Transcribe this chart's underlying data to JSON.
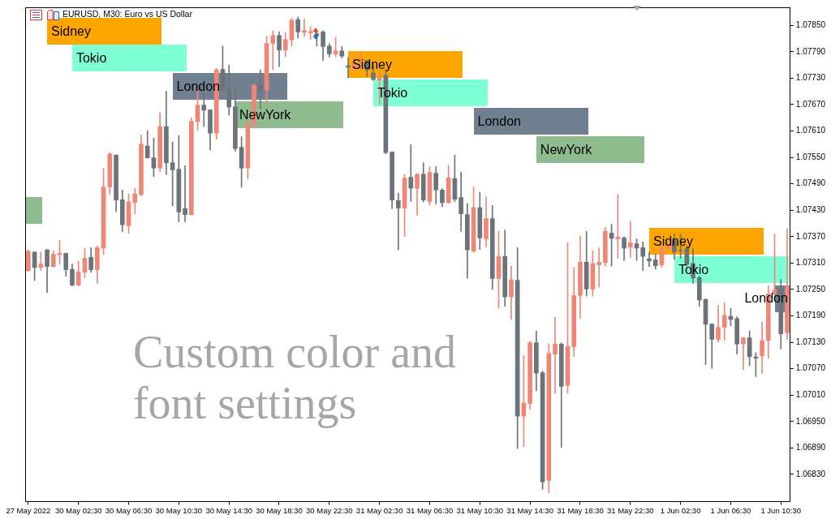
{
  "chart_data": {
    "type": "candlestick",
    "title": "EURUSD, M30: Euro vs US Dollar",
    "categories": [
      "27 May 2022",
      null,
      null,
      null,
      null,
      null,
      null,
      null,
      "30 May 02:30",
      null,
      null,
      null,
      null,
      null,
      null,
      null,
      "30 May 06:30",
      null,
      null,
      null,
      null,
      null,
      null,
      null,
      "30 May 10:30",
      null,
      null,
      null,
      null,
      null,
      null,
      null,
      "30 May 14:30",
      null,
      null,
      null,
      null,
      null,
      null,
      null,
      "30 May 18:30",
      null,
      null,
      null,
      null,
      null,
      null,
      null,
      "30 May 22:30",
      null,
      null,
      null,
      null,
      null,
      null,
      null,
      "31 May 02:30",
      null,
      null,
      null,
      null,
      null,
      null,
      null,
      "31 May 06:30",
      null,
      null,
      null,
      null,
      null,
      null,
      null,
      "31 May 10:30",
      null,
      null,
      null,
      null,
      null,
      null,
      null,
      "31 May 14:30",
      null,
      null,
      null,
      null,
      null,
      null,
      null,
      "31 May 18:30",
      null,
      null,
      null,
      null,
      null,
      null,
      null,
      "31 May 22:30",
      null,
      null,
      null,
      null,
      null,
      null,
      null,
      "1 Jun 02:30",
      null,
      null,
      null,
      null,
      null,
      null,
      null,
      "1 Jun 06:30",
      null,
      null,
      null,
      null,
      null,
      null,
      null,
      "1 Jun 10:30",
      null
    ],
    "ohlc": [
      [
        1.07293,
        1.0734,
        1.07291,
        1.07337
      ],
      [
        1.07335,
        1.07336,
        1.0727,
        1.073
      ],
      [
        1.073,
        1.07335,
        1.07293,
        1.07308
      ],
      [
        1.0734,
        1.07341,
        1.07243,
        1.07302
      ],
      [
        1.07302,
        1.07338,
        1.07301,
        1.0733
      ],
      [
        1.07329,
        1.07362,
        1.07307,
        1.07332
      ],
      [
        1.07332,
        1.07333,
        1.0728,
        1.07295
      ],
      [
        1.07296,
        1.07308,
        1.07258,
        1.0726
      ],
      [
        1.0726,
        1.07314,
        1.07258,
        1.0729
      ],
      [
        1.07289,
        1.07344,
        1.07276,
        1.07321
      ],
      [
        1.07323,
        1.07345,
        1.07289,
        1.07295
      ],
      [
        1.07295,
        1.07349,
        1.07264,
        1.07345
      ],
      [
        1.07344,
        1.07525,
        1.07329,
        1.07483
      ],
      [
        1.07483,
        1.07561,
        1.07466,
        1.07558
      ],
      [
        1.07555,
        1.07556,
        1.07427,
        1.07453
      ],
      [
        1.07454,
        1.07476,
        1.07381,
        1.07397
      ],
      [
        1.07395,
        1.07467,
        1.07377,
        1.07449
      ],
      [
        1.07447,
        1.0748,
        1.07422,
        1.07467
      ],
      [
        1.07466,
        1.07601,
        1.07462,
        1.0758
      ],
      [
        1.07576,
        1.07611,
        1.07548,
        1.07549
      ],
      [
        1.07549,
        1.07594,
        1.07506,
        1.07526
      ],
      [
        1.07526,
        1.07652,
        1.07518,
        1.0762
      ],
      [
        1.0762,
        1.077,
        1.07511,
        1.07538
      ],
      [
        1.07538,
        1.07585,
        1.0744,
        1.07522
      ],
      [
        1.07523,
        1.076,
        1.07404,
        1.07426
      ],
      [
        1.07434,
        1.07531,
        1.07404,
        1.0742
      ],
      [
        1.0742,
        1.0764,
        1.07419,
        1.07632
      ],
      [
        1.07631,
        1.077,
        1.07611,
        1.07669
      ],
      [
        1.07669,
        1.07696,
        1.0762,
        1.07657
      ],
      [
        1.07658,
        1.07659,
        1.07567,
        1.07605
      ],
      [
        1.07605,
        1.07752,
        1.07591,
        1.07749
      ],
      [
        1.0775,
        1.07803,
        1.07701,
        1.07703
      ],
      [
        1.07705,
        1.0776,
        1.07646,
        1.07664
      ],
      [
        1.07665,
        1.07712,
        1.07564,
        1.0757
      ],
      [
        1.07573,
        1.07597,
        1.07482,
        1.07526
      ],
      [
        1.07526,
        1.07631,
        1.07501,
        1.07629
      ],
      [
        1.07626,
        1.07717,
        1.07616,
        1.07714
      ],
      [
        1.07714,
        1.07749,
        1.07661,
        1.07701
      ],
      [
        1.07703,
        1.07826,
        1.07671,
        1.07809
      ],
      [
        1.07809,
        1.07838,
        1.07749,
        1.07827
      ],
      [
        1.07827,
        1.07835,
        1.07756,
        1.07794
      ],
      [
        1.07794,
        1.07834,
        1.07779,
        1.07818
      ],
      [
        1.07817,
        1.07866,
        1.07803,
        1.07862
      ],
      [
        1.07863,
        1.07869,
        1.07821,
        1.07835
      ],
      [
        1.07834,
        1.07864,
        1.07825,
        1.07838
      ],
      [
        1.07833,
        1.07847,
        1.07818,
        1.07836
      ],
      [
        1.07831,
        1.07836,
        1.07803,
        1.07827
      ],
      [
        1.07835,
        1.07838,
        1.0777,
        1.07802
      ],
      [
        1.07803,
        1.07809,
        1.07778,
        1.07785
      ],
      [
        1.07785,
        1.07823,
        1.07779,
        1.07792
      ],
      [
        1.07792,
        1.07802,
        1.07776,
        1.0778
      ],
      [
        1.07758,
        1.07777,
        1.07731,
        1.07755
      ],
      [
        1.07752,
        1.07785,
        1.07749,
        1.07764
      ],
      [
        1.07758,
        1.07791,
        1.07749,
        1.07762
      ],
      [
        1.0777,
        1.07771,
        1.07734,
        1.07749
      ],
      [
        1.07742,
        1.07761,
        1.07725,
        1.07727
      ],
      [
        1.07726,
        1.07743,
        1.0767,
        1.07731
      ],
      [
        1.07736,
        1.07749,
        1.07558,
        1.07561
      ],
      [
        1.07562,
        1.07563,
        1.07434,
        1.07453
      ],
      [
        1.07452,
        1.07469,
        1.0734,
        1.07435
      ],
      [
        1.07435,
        1.07512,
        1.0737,
        1.07503
      ],
      [
        1.07505,
        1.07579,
        1.0745,
        1.0748
      ],
      [
        1.0748,
        1.07513,
        1.07418,
        1.07512
      ],
      [
        1.07512,
        1.07538,
        1.07449,
        1.07453
      ],
      [
        1.0745,
        1.07529,
        1.07441,
        1.07516
      ],
      [
        1.07514,
        1.07529,
        1.07444,
        1.07476
      ],
      [
        1.07476,
        1.07479,
        1.07438,
        1.07447
      ],
      [
        1.07447,
        1.07532,
        1.07446,
        1.07503
      ],
      [
        1.07502,
        1.07555,
        1.07449,
        1.07455
      ],
      [
        1.07459,
        1.07517,
        1.07382,
        1.07422
      ],
      [
        1.0742,
        1.07445,
        1.07276,
        1.0734
      ],
      [
        1.07337,
        1.07483,
        1.07335,
        1.07436
      ],
      [
        1.07436,
        1.07471,
        1.07341,
        1.07367
      ],
      [
        1.07365,
        1.0746,
        1.07347,
        1.07411
      ],
      [
        1.07411,
        1.07441,
        1.0725,
        1.07275
      ],
      [
        1.07275,
        1.07383,
        1.07207,
        1.07325
      ],
      [
        1.07325,
        1.07385,
        1.07212,
        1.07233
      ],
      [
        1.07233,
        1.07303,
        1.07182,
        1.07272
      ],
      [
        1.07271,
        1.07345,
        1.06889,
        1.06962
      ],
      [
        1.06962,
        1.071,
        1.06893,
        1.06992
      ],
      [
        1.06991,
        1.07132,
        1.06978,
        1.07129
      ],
      [
        1.07129,
        1.07156,
        1.0702,
        1.0706
      ],
      [
        1.07061,
        1.07065,
        1.06796,
        1.06813
      ],
      [
        1.06816,
        1.07127,
        1.06788,
        1.07105
      ],
      [
        1.07103,
        1.07187,
        1.07014,
        1.07126
      ],
      [
        1.07126,
        1.07129,
        1.06891,
        1.0703
      ],
      [
        1.07032,
        1.07356,
        1.07014,
        1.07121
      ],
      [
        1.0712,
        1.073,
        1.07098,
        1.07236
      ],
      [
        1.07236,
        1.07371,
        1.07185,
        1.07312
      ],
      [
        1.07312,
        1.07382,
        1.07235,
        1.07251
      ],
      [
        1.07251,
        1.07338,
        1.07235,
        1.07309
      ],
      [
        1.07306,
        1.07344,
        1.07255,
        1.07312
      ],
      [
        1.07311,
        1.07391,
        1.07303,
        1.07382
      ],
      [
        1.07378,
        1.07398,
        1.07303,
        1.07366
      ],
      [
        1.07365,
        1.07466,
        1.07321,
        1.07369
      ],
      [
        1.07367,
        1.0737,
        1.07316,
        1.07344
      ],
      [
        1.07346,
        1.07405,
        1.07323,
        1.07356
      ],
      [
        1.07354,
        1.07365,
        1.07316,
        1.07344
      ],
      [
        1.07345,
        1.07358,
        1.07293,
        1.07325
      ],
      [
        1.0732,
        1.07335,
        1.07302,
        1.07315
      ],
      [
        1.07317,
        1.07331,
        1.07296,
        1.07304
      ],
      [
        1.07306,
        1.07352,
        1.073,
        1.07343
      ],
      [
        1.07342,
        1.07354,
        1.0734,
        1.07352
      ],
      [
        1.07361,
        1.07376,
        1.07318,
        1.07335
      ],
      [
        1.07337,
        1.07376,
        1.07321,
        1.07337
      ],
      [
        1.07343,
        1.07349,
        1.07303,
        1.07307
      ],
      [
        1.07309,
        1.07343,
        1.07264,
        1.07276
      ],
      [
        1.07277,
        1.0728,
        1.07212,
        1.07226
      ],
      [
        1.07227,
        1.07229,
        1.07079,
        1.07171
      ],
      [
        1.07171,
        1.07173,
        1.07071,
        1.07137
      ],
      [
        1.07137,
        1.07214,
        1.07131,
        1.07164
      ],
      [
        1.07164,
        1.0722,
        1.07134,
        1.07191
      ],
      [
        1.07189,
        1.07207,
        1.07167,
        1.07182
      ],
      [
        1.07184,
        1.07188,
        1.07103,
        1.07126
      ],
      [
        1.07126,
        1.07141,
        1.07067,
        1.0714
      ],
      [
        1.0714,
        1.07156,
        1.07077,
        1.07097
      ],
      [
        1.07097,
        1.07106,
        1.07052,
        1.07094
      ],
      [
        1.07099,
        1.07176,
        1.07059,
        1.07134
      ],
      [
        1.07134,
        1.07259,
        1.07094,
        1.0724
      ],
      [
        1.0724,
        1.07376,
        1.07234,
        1.07249
      ],
      [
        1.07251,
        1.07273,
        1.07115,
        1.07149
      ],
      [
        1.07152,
        1.07388,
        1.07137,
        1.07258
      ]
    ],
    "colors": [
      "#ef8676",
      "#6c737a",
      "#ef8676",
      "#6c737a",
      "#ef8676",
      "#ef8676",
      "#6c737a",
      "#6c737a",
      "#ef8676",
      "#ef8676",
      "#6c737a",
      "#ef8676",
      "#ef8676",
      "#ef8676",
      "#6c737a",
      "#6c737a",
      "#ef8676",
      "#ef8676",
      "#ef8676",
      "#6c737a",
      "#6c737a",
      "#ef8676",
      "#6c737a",
      "#6c737a",
      "#6c737a",
      "#6c737a",
      "#ef8676",
      "#ef8676",
      "#6c737a",
      "#6c737a",
      "#ef8676",
      "#6c737a",
      "#6c737a",
      "#6c737a",
      "#6c737a",
      "#ef8676",
      "#ef8676",
      "#6c737a",
      "#ef8676",
      "#ef8676",
      "#6c737a",
      "#ef8676",
      "#ef8676",
      "#6c737a",
      "#ef8676",
      "#ef8676",
      "#6c737a",
      "#6c737a",
      "#6c737a",
      "#ef8676",
      "#6c737a",
      "#6c737a",
      "#ef8676",
      "#ef8676",
      "#6c737a",
      "#6c737a",
      "#ef8676",
      "#6c737a",
      "#6c737a",
      "#6c737a",
      "#ef8676",
      "#6c737a",
      "#ef8676",
      "#6c737a",
      "#ef8676",
      "#6c737a",
      "#6c737a",
      "#ef8676",
      "#6c737a",
      "#6c737a",
      "#6c737a",
      "#ef8676",
      "#6c737a",
      "#ef8676",
      "#6c737a",
      "#ef8676",
      "#6c737a",
      "#ef8676",
      "#6c737a",
      "#ef8676",
      "#ef8676",
      "#6c737a",
      "#6c737a",
      "#ef8676",
      "#ef8676",
      "#6c737a",
      "#ef8676",
      "#ef8676",
      "#ef8676",
      "#6c737a",
      "#ef8676",
      "#ef8676",
      "#ef8676",
      "#6c737a",
      "#ef8676",
      "#6c737a",
      "#ef8676",
      "#6c737a",
      "#6c737a",
      "#6c737a",
      "#6c737a",
      "#ef8676",
      "#ef8676",
      "#6c737a",
      "#6c737a",
      "#6c737a",
      "#6c737a",
      "#6c737a",
      "#6c737a",
      "#6c737a",
      "#ef8676",
      "#ef8676",
      "#6c737a",
      "#6c737a",
      "#ef8676",
      "#6c737a",
      "#6c737a",
      "#ef8676",
      "#ef8676",
      "#ef8676",
      "#6c737a",
      "#ef8676"
    ],
    "ylim": [
      1.06768,
      1.07891
    ],
    "yticks": [
      {
        "value": 1.0683,
        "label": "1.06830"
      },
      {
        "value": 1.0689,
        "label": "1.06890"
      },
      {
        "value": 1.0695,
        "label": "1.06950"
      },
      {
        "value": 1.0701,
        "label": "1.07010"
      },
      {
        "value": 1.0707,
        "label": "1.07070"
      },
      {
        "value": 1.0713,
        "label": "1.07130"
      },
      {
        "value": 1.0719,
        "label": "1.07190"
      },
      {
        "value": 1.0725,
        "label": "1.07250"
      },
      {
        "value": 1.0731,
        "label": "1.07310"
      },
      {
        "value": 1.0737,
        "label": "1.07370"
      },
      {
        "value": 1.0743,
        "label": "1.07430"
      },
      {
        "value": 1.0749,
        "label": "1.07490"
      },
      {
        "value": 1.0755,
        "label": "1.07550"
      },
      {
        "value": 1.0761,
        "label": "1.07610"
      },
      {
        "value": 1.0767,
        "label": "1.07670"
      },
      {
        "value": 1.0773,
        "label": "1.07730"
      },
      {
        "value": 1.0779,
        "label": "1.07790"
      },
      {
        "value": 1.0785,
        "label": "1.07850"
      }
    ],
    "annotations": [
      "Sidney",
      "Tokio",
      "London",
      "NewYork",
      "Sidney",
      "Tokio",
      "London",
      "NewYork",
      "Sidney",
      "Tokio",
      "London",
      "Custom color and font settings"
    ]
  }
}
